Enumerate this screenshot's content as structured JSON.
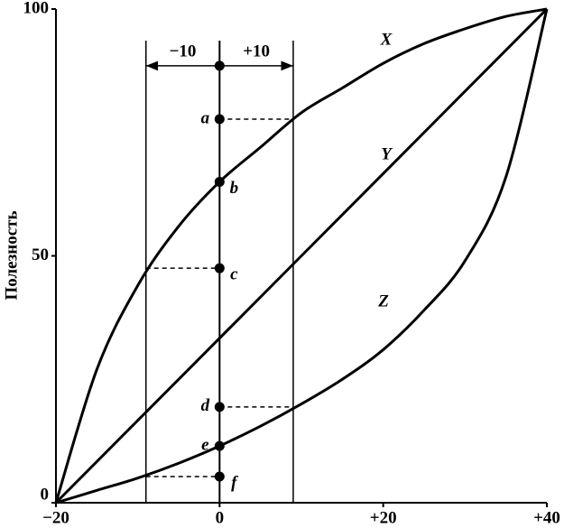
{
  "chart_data": {
    "type": "line",
    "y_label": "Полезность",
    "xlim": [
      -20,
      40
    ],
    "ylim": [
      0,
      100
    ],
    "xticks": [
      {
        "value": -20,
        "label": "−20"
      },
      0,
      {
        "value": 20,
        "label": "+20"
      },
      {
        "value": 40,
        "label": "+40"
      }
    ],
    "yticks": [
      0,
      50,
      100
    ],
    "series": [
      {
        "name": "X",
        "color": "#000000",
        "x": [
          -20,
          -15,
          -10,
          -5,
          0,
          5,
          10,
          15,
          20,
          25,
          30,
          35,
          40
        ],
        "values": [
          0,
          27,
          44,
          56,
          65,
          72,
          79,
          84,
          89,
          93,
          96,
          98.5,
          100
        ]
      },
      {
        "name": "Y",
        "color": "#000000",
        "x": [
          -20,
          40
        ],
        "values": [
          0,
          100
        ]
      },
      {
        "name": "Z",
        "color": "#000000",
        "x": [
          -20,
          -15,
          -10,
          -5,
          0,
          5,
          10,
          15,
          20,
          25,
          30,
          35,
          40
        ],
        "values": [
          0,
          2.5,
          5,
          8,
          11.5,
          15.5,
          20,
          25,
          31,
          39,
          49,
          66,
          100
        ]
      }
    ],
    "guides": [
      -9,
      9
    ],
    "interval": {
      "y": 88.5,
      "labels": [
        "−10",
        "+10"
      ]
    },
    "points": {
      "labels": [
        null,
        "a",
        "b",
        "c",
        "d",
        "e",
        "f"
      ],
      "x": [
        0,
        0,
        0,
        0,
        0,
        0,
        0
      ],
      "values": [
        88.5,
        77.7,
        65,
        47.5,
        19.4,
        11.5,
        5.3
      ]
    },
    "dashes": [
      {
        "x": [
          0,
          9
        ],
        "y": 77.7
      },
      {
        "x": [
          -9,
          0
        ],
        "y": 47.5
      },
      {
        "x": [
          0,
          9
        ],
        "y": 19.4
      },
      {
        "x": [
          -9,
          0
        ],
        "y": 5.3
      }
    ]
  }
}
